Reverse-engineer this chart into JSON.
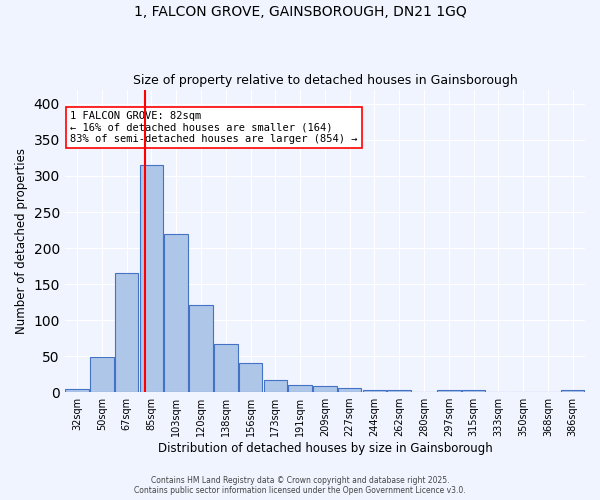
{
  "title": "1, FALCON GROVE, GAINSBOROUGH, DN21 1GQ",
  "subtitle": "Size of property relative to detached houses in Gainsborough",
  "xlabel": "Distribution of detached houses by size in Gainsborough",
  "ylabel": "Number of detached properties",
  "bar_color": "#aec6e8",
  "bar_edge_color": "#4472c4",
  "background_color": "#f0f4ff",
  "grid_color": "#ffffff",
  "categories": [
    "32sqm",
    "50sqm",
    "67sqm",
    "85sqm",
    "103sqm",
    "120sqm",
    "138sqm",
    "156sqm",
    "173sqm",
    "191sqm",
    "209sqm",
    "227sqm",
    "244sqm",
    "262sqm",
    "280sqm",
    "297sqm",
    "315sqm",
    "333sqm",
    "350sqm",
    "368sqm",
    "386sqm"
  ],
  "values": [
    4,
    49,
    165,
    315,
    219,
    121,
    67,
    40,
    17,
    10,
    9,
    6,
    3,
    3,
    0,
    3,
    3,
    0,
    0,
    0,
    3
  ],
  "property_line_x": 82,
  "annotation_text": "1 FALCON GROVE: 82sqm\n← 16% of detached houses are smaller (164)\n83% of semi-detached houses are larger (854) →",
  "ylim": [
    0,
    420
  ],
  "yticks": [
    0,
    50,
    100,
    150,
    200,
    250,
    300,
    350,
    400
  ],
  "footer": "Contains HM Land Registry data © Crown copyright and database right 2025.\nContains public sector information licensed under the Open Government Licence v3.0."
}
